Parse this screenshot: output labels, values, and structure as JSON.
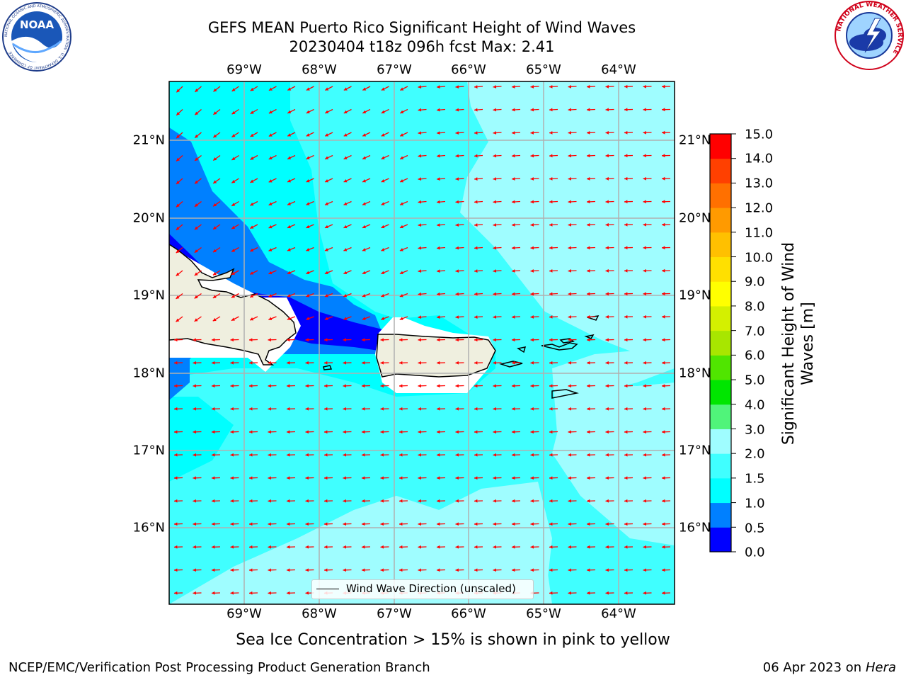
{
  "title": {
    "line1": "GEFS MEAN Puerto Rico Significant Height of Wind Waves",
    "line2": "20230404 t18z 096h fcst   Max: 2.41"
  },
  "map": {
    "lon_ticks": [
      "69°W",
      "68°W",
      "67°W",
      "66°W",
      "65°W",
      "64°W"
    ],
    "lat_ticks": [
      "21°N",
      "20°N",
      "19°N",
      "18°N",
      "17°N",
      "16°N"
    ],
    "lat_ticks_right": [
      "21°N",
      "20°N",
      "19°N",
      "18°N",
      "17°N",
      "16°N"
    ],
    "extent": {
      "lon_min": -70.0,
      "lon_max": -63.25,
      "lat_min": 15.0,
      "lat_max": 21.75
    },
    "wave_direction": "from east / east-northeast",
    "legend_label": "Wind Wave Direction (unscaled)",
    "colors": {
      "land": "#efefdf",
      "arrow": "#ff0000",
      "ocean_0_5": "#0000ff",
      "ocean_1_0": "#0080ff",
      "ocean_1_5": "#00ffff",
      "ocean_2_0": "#40ffff",
      "ocean_3_0": "#9ffdff"
    }
  },
  "colorbar": {
    "label_line1": "Significant Height of Wind",
    "label_line2": "Waves [m]",
    "ticks": [
      "0.0",
      "0.5",
      "1.0",
      "1.5",
      "2.0",
      "3.0",
      "4.0",
      "5.0",
      "6.0",
      "7.0",
      "8.0",
      "9.0",
      "10.0",
      "11.0",
      "12.0",
      "13.0",
      "14.0",
      "15.0"
    ],
    "colors": [
      "#0000ff",
      "#0080ff",
      "#00ffff",
      "#40ffff",
      "#9ffdff",
      "#50f47a",
      "#00e600",
      "#50e500",
      "#a8e600",
      "#d4f000",
      "#ffff00",
      "#ffe000",
      "#ffc000",
      "#ff9a00",
      "#ff7000",
      "#ff4000",
      "#ff0000"
    ]
  },
  "footer": {
    "ice_note": "Sea Ice Concentration > 15% is shown in pink to yellow",
    "left": "NCEP/EMC/Verification Post Processing Product Generation Branch",
    "right_date": "06 Apr 2023 on ",
    "right_host": "Hera"
  },
  "logos": {
    "noaa_text": "NOAA",
    "noaa_ring": "NATIONAL OCEANIC AND ATMOSPHERIC ADMINISTRATION · U.S. DEPARTMENT OF COMMERCE",
    "nws_ring": "NATIONAL WEATHER SERVICE"
  }
}
